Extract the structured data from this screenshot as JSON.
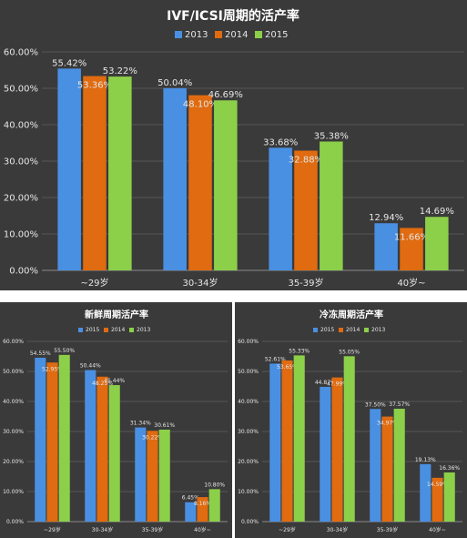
{
  "colors": {
    "blue": "#4a90e2",
    "orange": "#e06b10",
    "green": "#8cd04a",
    "panel_bg": "#3a3a3a"
  },
  "chart_data": [
    {
      "type": "bar",
      "title": "IVF/ICSI周期的活产率",
      "categories": [
        "~29岁",
        "30-34岁",
        "35-39岁",
        "40岁~"
      ],
      "series": [
        {
          "name": "2013",
          "color": "#4a90e2",
          "values": [
            55.42,
            50.04,
            33.68,
            12.94
          ],
          "labels": [
            "55.42%",
            "50.04%",
            "33.68%",
            "12.94%"
          ]
        },
        {
          "name": "2014",
          "color": "#e06b10",
          "values": [
            53.36,
            48.1,
            32.88,
            11.66
          ],
          "labels": [
            "53.36%",
            "48.10%",
            "32.88%",
            "11.66%"
          ]
        },
        {
          "name": "2015",
          "color": "#8cd04a",
          "values": [
            53.22,
            46.69,
            35.38,
            14.69
          ],
          "labels": [
            "53.22%",
            "46.69%",
            "35.38%",
            "14.69%"
          ]
        }
      ],
      "ylim": [
        0,
        60
      ],
      "yticks": [
        "0.00%",
        "10.00%",
        "20.00%",
        "30.00%",
        "40.00%",
        "50.00%",
        "60.00%"
      ],
      "legend": "top",
      "grid": true
    },
    {
      "type": "bar",
      "title": "新鲜周期活产率",
      "categories": [
        "~29岁",
        "30-34岁",
        "35-39岁",
        "40岁~"
      ],
      "series": [
        {
          "name": "2015",
          "color": "#4a90e2",
          "values": [
            54.55,
            50.44,
            31.34,
            6.45
          ],
          "labels": [
            "54.55%",
            "50.44%",
            "31.34%",
            "6.45%"
          ]
        },
        {
          "name": "2014",
          "color": "#e06b10",
          "values": [
            52.95,
            48.25,
            30.22,
            8.16
          ],
          "labels": [
            "52.95%",
            "48.25%",
            "30.22%",
            "8.16%"
          ]
        },
        {
          "name": "2013",
          "color": "#8cd04a",
          "values": [
            55.5,
            45.44,
            30.61,
            10.8
          ],
          "labels": [
            "55.50%",
            "45.44%",
            "30.61%",
            "10.80%"
          ]
        }
      ],
      "ylim": [
        0,
        60
      ],
      "yticks": [
        "0.00%",
        "10.00%",
        "20.00%",
        "30.00%",
        "40.00%",
        "50.00%",
        "60.00%"
      ],
      "legend": "top",
      "grid": true
    },
    {
      "type": "bar",
      "title": "冷冻周期活产率",
      "categories": [
        "~29岁",
        "30-34岁",
        "35-39岁",
        "40岁~"
      ],
      "series": [
        {
          "name": "2015",
          "color": "#4a90e2",
          "values": [
            52.61,
            44.87,
            37.5,
            19.13
          ],
          "labels": [
            "52.61%",
            "44.87%",
            "37.50%",
            "19.13%"
          ]
        },
        {
          "name": "2014",
          "color": "#e06b10",
          "values": [
            53.65,
            47.99,
            34.97,
            14.59
          ],
          "labels": [
            "53.65%",
            "47.99%",
            "34.97%",
            "14.59%"
          ]
        },
        {
          "name": "2013",
          "color": "#8cd04a",
          "values": [
            55.33,
            55.05,
            37.57,
            16.36
          ],
          "labels": [
            "55.33%",
            "55.05%",
            "37.57%",
            "16.36%"
          ]
        }
      ],
      "ylim": [
        0,
        60
      ],
      "yticks": [
        "0.00%",
        "10.00%",
        "20.00%",
        "30.00%",
        "40.00%",
        "50.00%",
        "60.00%"
      ],
      "legend": "top",
      "grid": true
    }
  ]
}
